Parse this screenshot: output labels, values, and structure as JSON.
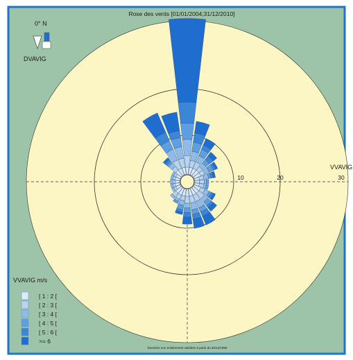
{
  "colors": {
    "frame": "#1e74c8",
    "background": "#9dc4a8",
    "rose_fill": "#fbf6c3",
    "ring": "#333333",
    "class_colors": [
      "#dce9f8",
      "#b9d4f1",
      "#8fbbea",
      "#5f9ee0",
      "#3c86d8",
      "#1f6dce"
    ]
  },
  "chart_data": {
    "type": "wind-rose",
    "title": "Rose des vents [01/01/2004;31/12/2010]",
    "north_label": "0° N",
    "direction_label": "DVAVIG",
    "radial_axis_label": "VVAVIG",
    "radial_ticks": [
      "10",
      "20",
      "30"
    ],
    "radial_tick_values": [
      10,
      20,
      30
    ],
    "legend_title": "VVAVIG m/s",
    "classes": [
      "[ 1 : 2 [",
      "[ 2 : 3 [",
      "[ 3 : 4 [",
      "[ 4 : 5 [",
      "[ 5 : 6 [",
      ">= 6"
    ],
    "footnote": "Données non entièrement validées à partir du 30/12/1999",
    "sectors": [
      {
        "direction": 0,
        "values": [
          1.5,
          2.5,
          3.5,
          3.5,
          4.5,
          18
        ]
      },
      {
        "direction": 345,
        "values": [
          1.5,
          2,
          2.5,
          2,
          1.5,
          4
        ]
      },
      {
        "direction": 330,
        "values": [
          1.5,
          2,
          2.5,
          2,
          2,
          4.5
        ]
      },
      {
        "direction": 315,
        "values": [
          1.5,
          1,
          1,
          0.5,
          0.5,
          0.5
        ]
      },
      {
        "direction": 300,
        "values": [
          1,
          0.5,
          0.5,
          0,
          0,
          0
        ]
      },
      {
        "direction": 285,
        "values": [
          1,
          0.5,
          0.5,
          0,
          0,
          0
        ]
      },
      {
        "direction": 270,
        "values": [
          1,
          0.5,
          0.5,
          0,
          0,
          0
        ]
      },
      {
        "direction": 255,
        "values": [
          1,
          0.5,
          0.5,
          0,
          0,
          0
        ]
      },
      {
        "direction": 240,
        "values": [
          1,
          0.5,
          0.5,
          0,
          0,
          0
        ]
      },
      {
        "direction": 225,
        "values": [
          1.5,
          1,
          0.5,
          0,
          0,
          0
        ]
      },
      {
        "direction": 210,
        "values": [
          1.5,
          1,
          0.5,
          0.5,
          0,
          0
        ]
      },
      {
        "direction": 195,
        "values": [
          1.5,
          1,
          1,
          1,
          0.5,
          0.5
        ]
      },
      {
        "direction": 180,
        "values": [
          1.5,
          1.5,
          1,
          1,
          1,
          1.5
        ]
      },
      {
        "direction": 165,
        "values": [
          1.5,
          1.5,
          1.5,
          1,
          1,
          2
        ]
      },
      {
        "direction": 150,
        "values": [
          1.5,
          1.5,
          1.5,
          1,
          1,
          2
        ]
      },
      {
        "direction": 135,
        "values": [
          1.5,
          1.5,
          1,
          1,
          0.5,
          1
        ]
      },
      {
        "direction": 120,
        "values": [
          1.5,
          1,
          1,
          0.5,
          0.5,
          0.5
        ]
      },
      {
        "direction": 105,
        "values": [
          1,
          1,
          0.5,
          0.5,
          0,
          0
        ]
      },
      {
        "direction": 90,
        "values": [
          1,
          1,
          0.5,
          0.5,
          0,
          0
        ]
      },
      {
        "direction": 75,
        "values": [
          1,
          1,
          1,
          0.5,
          0.5,
          0.5
        ]
      },
      {
        "direction": 60,
        "values": [
          1.5,
          1,
          1,
          1,
          0.5,
          0.5
        ]
      },
      {
        "direction": 45,
        "values": [
          1.5,
          1,
          1,
          1,
          1,
          1
        ]
      },
      {
        "direction": 30,
        "values": [
          1.5,
          1.5,
          1.5,
          1.5,
          1,
          1.5
        ]
      },
      {
        "direction": 15,
        "values": [
          1.5,
          1.5,
          2,
          2,
          2,
          2.5
        ]
      }
    ]
  }
}
